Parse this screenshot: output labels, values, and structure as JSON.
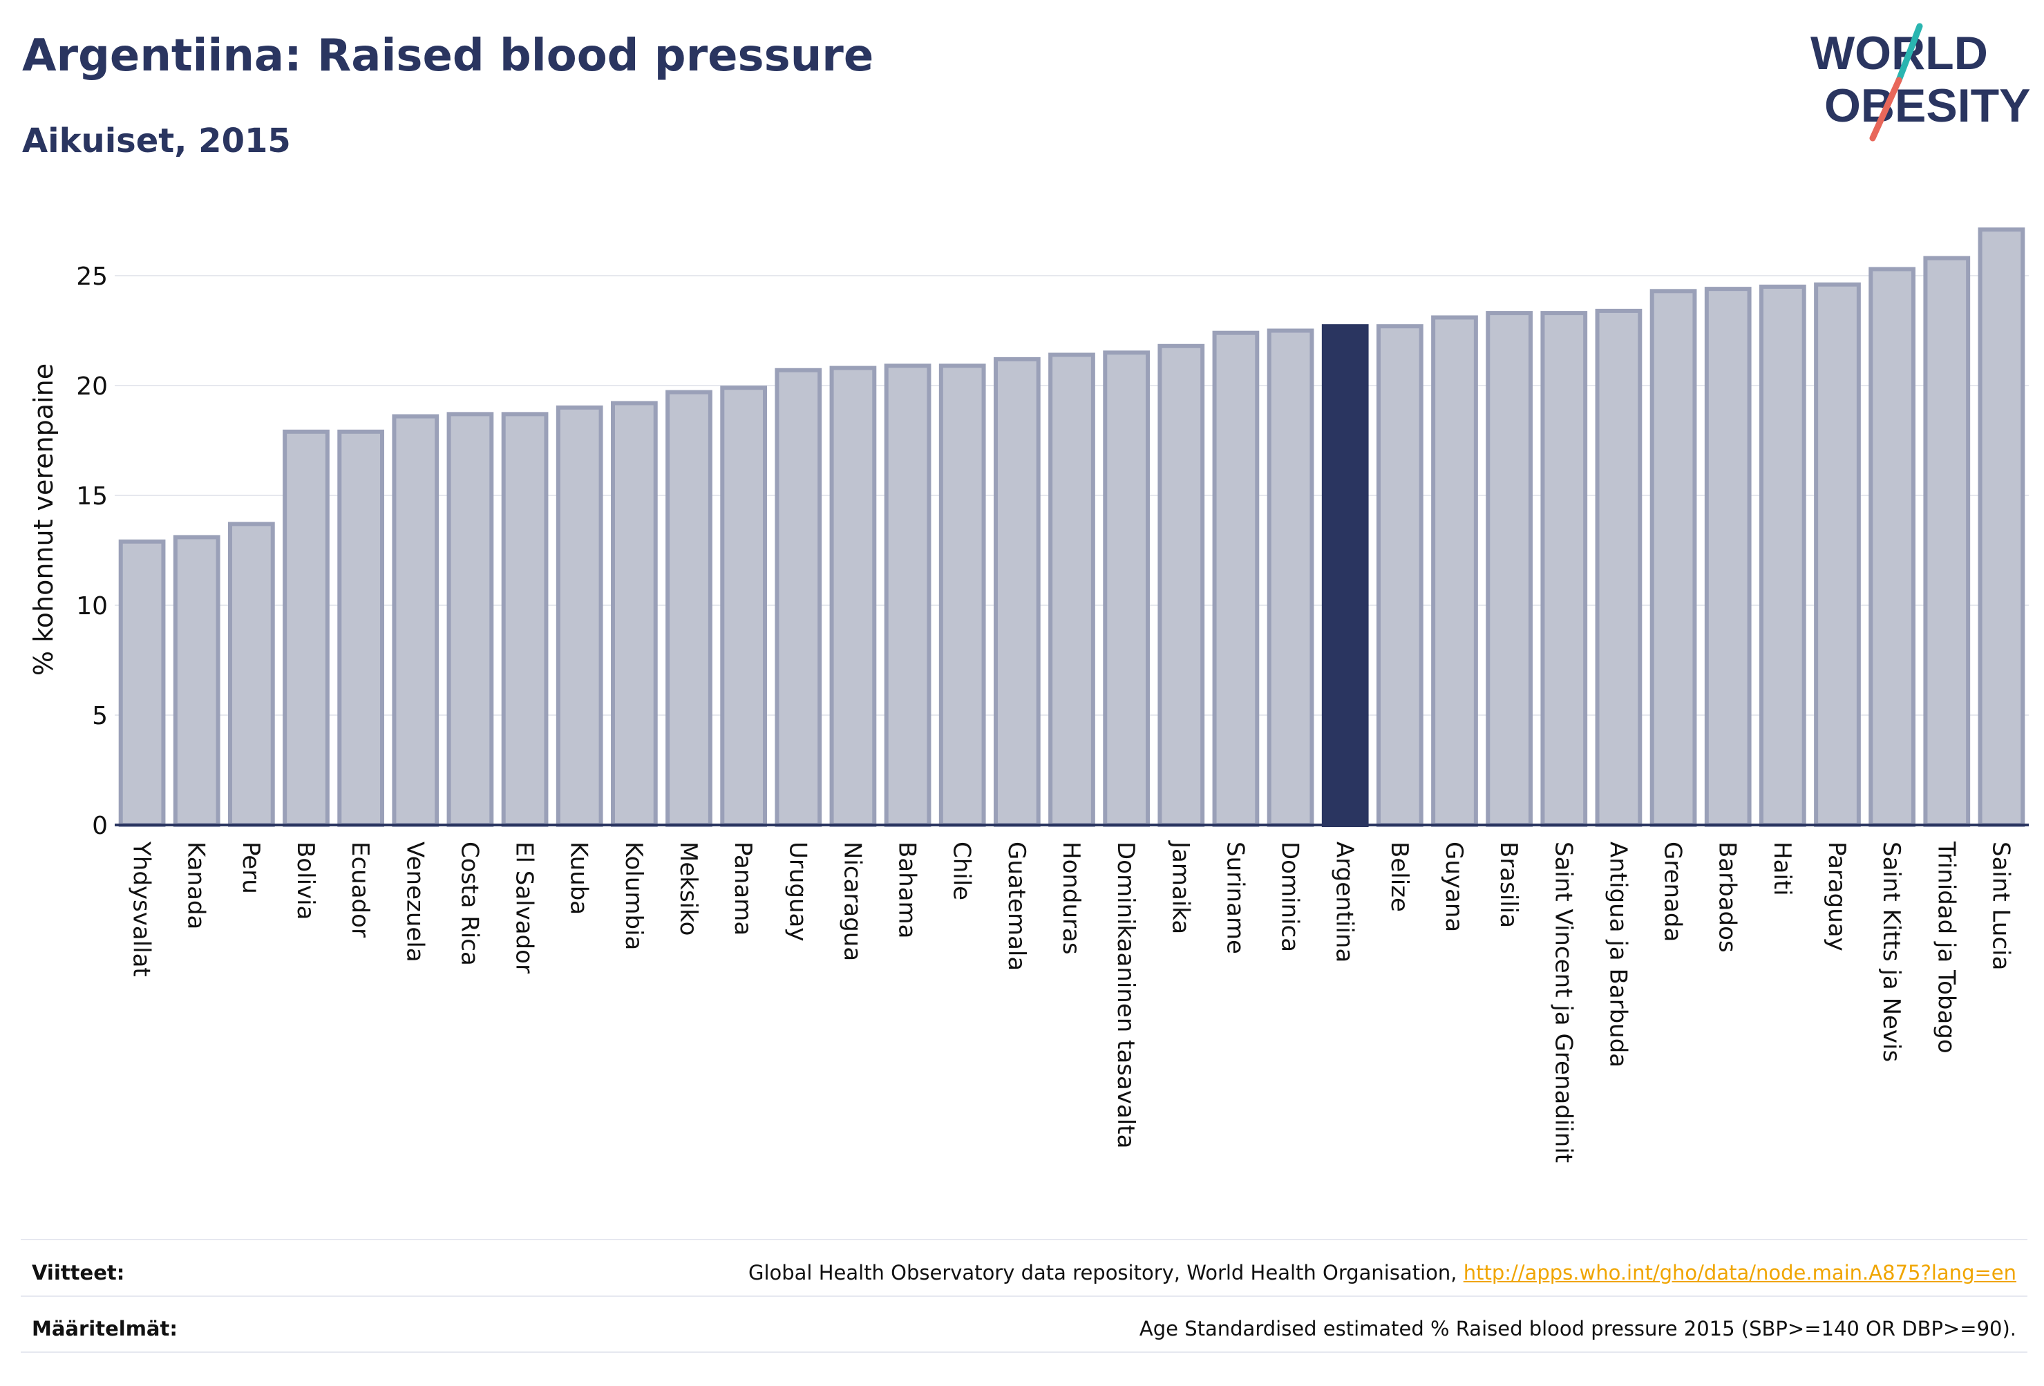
{
  "header": {
    "title": "Argentiina: Raised blood pressure",
    "subtitle": "Aikuiset, 2015"
  },
  "logo": {
    "line1": "WORLD",
    "line2": "OBESITY",
    "colors": {
      "text": "#2a3560",
      "slash_teal": "#2ab5b0",
      "slash_red": "#e8675a"
    }
  },
  "colors": {
    "bar_fill": "#bfc3d0",
    "bar_stroke": "#9aa0b8",
    "highlight": "#2a3560",
    "grid": "#e6e8ee",
    "axis": "#2a3560"
  },
  "chart_data": {
    "type": "bar",
    "title": "",
    "xlabel": "",
    "ylabel": "% kohonnut verenpaine",
    "ylim": [
      0,
      27.8
    ],
    "yticks": [
      0,
      5,
      10,
      15,
      20,
      25
    ],
    "grid": true,
    "highlight": "Argentiina",
    "categories": [
      "Yhdysvallat",
      "Kanada",
      "Peru",
      "Bolivia",
      "Ecuador",
      "Venezuela",
      "Costa Rica",
      "El Salvador",
      "Kuuba",
      "Kolumbia",
      "Meksiko",
      "Panama",
      "Uruguay",
      "Nicaragua",
      "Bahama",
      "Chile",
      "Guatemala",
      "Honduras",
      "Dominikaaninen tasavalta",
      "Jamaika",
      "Suriname",
      "Dominica",
      "Argentiina",
      "Belize",
      "Guyana",
      "Brasilia",
      "Saint Vincent ja Grenadiinit",
      "Antigua ja Barbuda",
      "Grenada",
      "Barbados",
      "Haiti",
      "Paraguay",
      "Saint Kitts ja Nevis",
      "Trinidad ja Tobago",
      "Saint Lucia"
    ],
    "values": [
      12.9,
      13.1,
      13.7,
      17.9,
      17.9,
      18.6,
      18.7,
      18.7,
      19.0,
      19.2,
      19.7,
      19.9,
      20.7,
      20.8,
      20.9,
      20.9,
      21.2,
      21.4,
      21.5,
      21.8,
      22.4,
      22.5,
      22.7,
      22.7,
      23.1,
      23.3,
      23.3,
      23.4,
      24.3,
      24.4,
      24.5,
      24.6,
      25.3,
      25.8,
      27.1
    ]
  },
  "footer": {
    "refs_label": "Viitteet:",
    "refs_text": "Global Health Observatory data repository, World Health Organisation,",
    "refs_link": "http://apps.who.int/gho/data/node.main.A875?lang=en",
    "defs_label": "Määritelmät:",
    "defs_text": "Age Standardised estimated % Raised blood pressure 2015 (SBP>=140 OR DBP>=90)."
  }
}
